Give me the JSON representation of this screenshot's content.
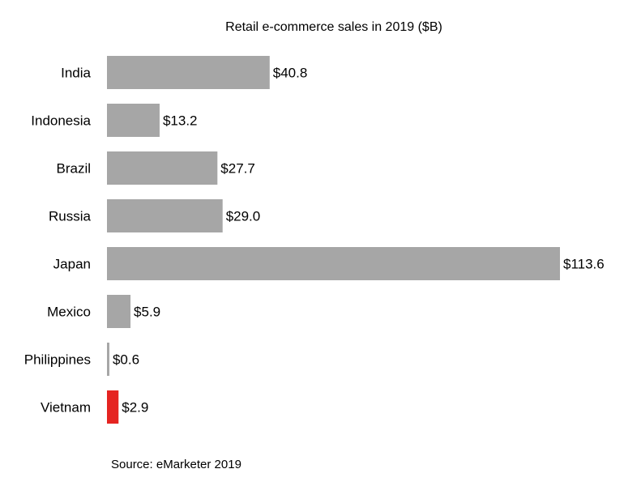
{
  "chart_data": {
    "type": "bar",
    "orientation": "horizontal",
    "title": "Retail e-commerce sales in 2019 ($B)",
    "categories": [
      "India",
      "Indonesia",
      "Brazil",
      "Russia",
      "Japan",
      "Mexico",
      "Philippines",
      "Vietnam"
    ],
    "values": [
      40.8,
      13.2,
      27.7,
      29.0,
      113.6,
      5.9,
      0.6,
      2.9
    ],
    "data_labels": [
      "$40.8",
      "$13.2",
      "$27.7",
      "$29.0",
      "$113.6",
      "$5.9",
      "$0.6",
      "$2.9"
    ],
    "highlight": "Vietnam",
    "colors": {
      "default": "#a6a6a6",
      "highlight": "#e52421"
    },
    "xlim": [
      0,
      113.6
    ],
    "grid": false,
    "source": "Source: eMarketer 2019"
  }
}
